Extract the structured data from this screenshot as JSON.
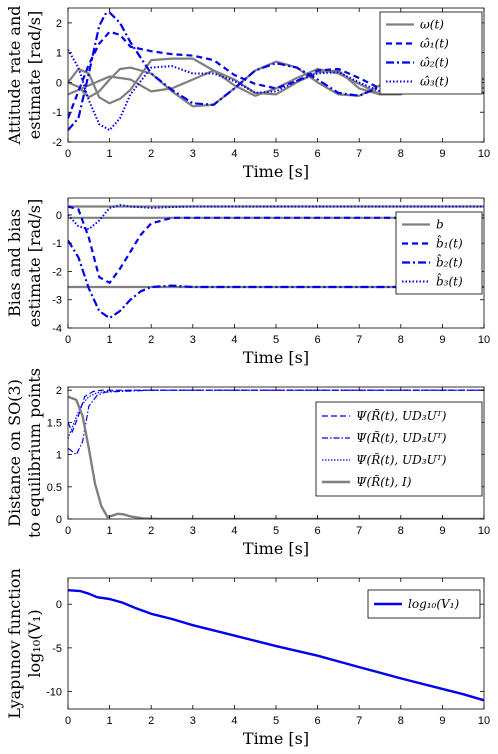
{
  "colors": {
    "gray": "#7f7f7f",
    "blue": "#0000ee",
    "axis": "#000000",
    "background": "#ffffff"
  },
  "chart_data": [
    {
      "type": "line",
      "xlabel": "Time [s]",
      "ylabel": [
        "Attitude rate and",
        "estimate [rad/s]"
      ],
      "xlim": [
        0,
        10
      ],
      "ylim": [
        -2,
        2.5
      ],
      "xticks": [
        "0",
        "1",
        "2",
        "3",
        "4",
        "5",
        "6",
        "7",
        "8",
        "9",
        "10"
      ],
      "yticks": [
        {
          "v": -2,
          "label": "-2"
        },
        {
          "v": -1,
          "label": "-1"
        },
        {
          "v": 0,
          "label": "0"
        },
        {
          "v": 1,
          "label": "1"
        },
        {
          "v": 2,
          "label": "2"
        }
      ],
      "legend_position": "top-right",
      "series": [
        {
          "name": "ω(t)",
          "color": "#7f7f7f",
          "dash": "solid",
          "width": 2.2,
          "x": [
            0,
            0.25,
            0.5,
            0.75,
            1,
            1.25,
            1.5,
            2,
            2.5,
            3,
            3.5,
            4,
            4.5,
            5,
            5.5,
            6,
            6.5,
            7,
            7.5,
            8,
            8.5,
            9,
            9.5,
            10
          ],
          "y": [
            0,
            0.45,
            0.3,
            -0.5,
            -0.7,
            -0.55,
            -0.25,
            0.75,
            0.8,
            0.8,
            0.4,
            -0.1,
            -0.45,
            -0.2,
            0.15,
            0.45,
            0.3,
            -0.05,
            -0.4,
            -0.4,
            -0.05,
            0.3,
            0.4,
            0.1
          ]
        },
        {
          "name": "ω(t)",
          "color": "#7f7f7f",
          "dash": "solid",
          "width": 2.2,
          "x": [
            0,
            0.25,
            0.5,
            0.75,
            1,
            1.25,
            1.5,
            2,
            2.5,
            3,
            3.5,
            4,
            4.5,
            5,
            5.5,
            6,
            6.5,
            7,
            7.5,
            8,
            8.5,
            9,
            9.5,
            10
          ],
          "y": [
            0,
            -0.15,
            -0.5,
            -0.3,
            0.1,
            0.45,
            0.5,
            0.3,
            -0.3,
            -0.8,
            -0.75,
            -0.2,
            0.4,
            0.7,
            0.5,
            0,
            -0.4,
            -0.45,
            -0.1,
            0.3,
            0.45,
            0.2,
            -0.2,
            -0.35
          ]
        },
        {
          "name": "ω(t)",
          "color": "#7f7f7f",
          "dash": "solid",
          "width": 2.2,
          "x": [
            0,
            0.5,
            1,
            1.5,
            2,
            2.5,
            3,
            3.5,
            4,
            4.5,
            5,
            5.5,
            6,
            6.5,
            7,
            7.5,
            8,
            8.5,
            9,
            9.5,
            10
          ],
          "y": [
            -0.4,
            -0.1,
            0.2,
            0.1,
            -0.3,
            -0.2,
            0.1,
            0.4,
            0.1,
            -0.35,
            -0.4,
            0,
            0.35,
            0.4,
            -0.2,
            -0.4,
            -0.2,
            0.2,
            0.35,
            0.1,
            -0.2
          ]
        },
        {
          "name": "ω̂₁(t)",
          "color": "#0000ee",
          "dash": "6,4",
          "width": 2.2,
          "x": [
            0,
            0.25,
            0.5,
            0.75,
            1,
            1.25,
            1.5,
            2,
            2.5,
            3,
            3.5,
            4,
            4.5,
            5,
            5.5,
            6,
            6.5,
            7,
            7.5,
            8,
            8.5,
            9,
            9.5,
            10
          ],
          "y": [
            -1.2,
            -0.3,
            0.6,
            1.3,
            1.7,
            1.6,
            1.2,
            1.05,
            0.95,
            0.9,
            0.75,
            0.25,
            -0.05,
            -0.2,
            0.05,
            0.4,
            0.45,
            0.15,
            -0.2,
            -0.35,
            -0.1,
            0.3,
            0.45,
            0.2
          ]
        },
        {
          "name": "ω̂₂(t)",
          "color": "#0000ee",
          "dash": "8,3,2,3",
          "width": 2.2,
          "x": [
            0,
            0.25,
            0.5,
            0.75,
            0.9,
            1,
            1.25,
            1.5,
            2,
            2.5,
            3,
            3.5,
            4,
            4.5,
            5,
            5.5,
            6,
            6.5,
            7,
            7.5,
            8,
            8.5,
            9,
            9.5,
            10
          ],
          "y": [
            -1.6,
            -1.2,
            0.3,
            1.9,
            2.3,
            2.35,
            2,
            1.35,
            0.3,
            -0.25,
            -0.7,
            -0.75,
            -0.2,
            0.4,
            0.65,
            0.5,
            0.1,
            -0.35,
            -0.45,
            -0.15,
            0.25,
            0.45,
            0.25,
            -0.15,
            -0.35
          ]
        },
        {
          "name": "ω̂₃(t)",
          "color": "#0000ee",
          "dash": "1.5,2",
          "width": 2,
          "x": [
            0,
            0.25,
            0.5,
            0.75,
            1,
            1.25,
            1.5,
            2,
            2.5,
            3,
            3.5,
            4,
            4.5,
            5,
            5.5,
            6,
            6.5,
            7,
            7.5,
            8,
            8.5,
            9,
            9.5,
            10
          ],
          "y": [
            1.1,
            0.5,
            -0.6,
            -1.4,
            -1.6,
            -1.2,
            -0.4,
            0.5,
            0.55,
            0.3,
            0.3,
            0.05,
            -0.35,
            -0.3,
            0.05,
            0.3,
            0.35,
            0,
            -0.3,
            -0.3,
            0.05,
            0.3,
            0.2,
            -0.1
          ]
        }
      ]
    },
    {
      "type": "line",
      "xlabel": "Time [s]",
      "ylabel": [
        "Bias and bias",
        "estimate [rad/s]"
      ],
      "xlim": [
        0,
        10
      ],
      "ylim": [
        -4,
        0.6
      ],
      "xticks": [
        "0",
        "1",
        "2",
        "3",
        "4",
        "5",
        "6",
        "7",
        "8",
        "9",
        "10"
      ],
      "yticks": [
        {
          "v": -4,
          "label": "-4"
        },
        {
          "v": -3,
          "label": "-3"
        },
        {
          "v": -2,
          "label": "-2"
        },
        {
          "v": -1,
          "label": "-1"
        },
        {
          "v": 0,
          "label": "0"
        }
      ],
      "legend_position": "top-right",
      "series": [
        {
          "name": "b",
          "color": "#7f7f7f",
          "dash": "solid",
          "width": 2.2,
          "x": [
            0,
            10
          ],
          "y": [
            0.3,
            0.3
          ]
        },
        {
          "name": "b",
          "color": "#7f7f7f",
          "dash": "solid",
          "width": 2.2,
          "x": [
            0,
            10
          ],
          "y": [
            -0.1,
            -0.1
          ]
        },
        {
          "name": "b",
          "color": "#7f7f7f",
          "dash": "solid",
          "width": 2.2,
          "x": [
            0,
            10
          ],
          "y": [
            -2.55,
            -2.55
          ]
        },
        {
          "name": "b̂₁(t)",
          "color": "#0000ee",
          "dash": "6,4",
          "width": 2.2,
          "x": [
            0,
            0.25,
            0.5,
            0.75,
            1,
            1.25,
            1.5,
            1.75,
            2,
            2.5,
            3,
            4,
            5,
            6,
            7,
            8,
            9,
            10
          ],
          "y": [
            0.3,
            0.2,
            -0.8,
            -2.2,
            -2.4,
            -1.9,
            -1.3,
            -0.7,
            -0.3,
            -0.1,
            -0.1,
            -0.1,
            -0.1,
            -0.1,
            -0.1,
            -0.1,
            -0.1,
            -0.1
          ]
        },
        {
          "name": "b̂₂(t)",
          "color": "#0000ee",
          "dash": "8,3,2,3",
          "width": 2.2,
          "x": [
            0,
            0.25,
            0.5,
            0.75,
            1,
            1.25,
            1.5,
            1.75,
            2,
            2.5,
            3,
            4,
            5,
            6,
            7,
            8,
            9,
            10
          ],
          "y": [
            -0.9,
            -1.5,
            -2.6,
            -3.4,
            -3.65,
            -3.4,
            -3.0,
            -2.7,
            -2.55,
            -2.5,
            -2.55,
            -2.55,
            -2.55,
            -2.55,
            -2.55,
            -2.55,
            -2.55,
            -2.55
          ]
        },
        {
          "name": "b̂₃(t)",
          "color": "#0000ee",
          "dash": "1.5,2",
          "width": 2,
          "x": [
            0,
            0.25,
            0.5,
            0.75,
            1,
            1.25,
            1.5,
            2,
            2.5,
            3,
            4,
            5,
            6,
            7,
            8,
            9,
            10
          ],
          "y": [
            0,
            -0.4,
            -0.5,
            -0.2,
            0.25,
            0.35,
            0.3,
            0.25,
            0.28,
            0.3,
            0.3,
            0.3,
            0.3,
            0.3,
            0.3,
            0.3,
            0.3
          ]
        }
      ]
    },
    {
      "type": "line",
      "xlabel": "Time [s]",
      "ylabel": [
        "Distance on SO(3)",
        "to equilibrium points"
      ],
      "xlim": [
        0,
        10
      ],
      "ylim": [
        0,
        2.05
      ],
      "xticks": [
        "0",
        "1",
        "2",
        "3",
        "4",
        "5",
        "6",
        "7",
        "8",
        "9",
        "10"
      ],
      "yticks": [
        {
          "v": 0,
          "label": "0"
        },
        {
          "v": 0.5,
          "label": "0.5"
        },
        {
          "v": 1,
          "label": "1"
        },
        {
          "v": 1.5,
          "label": "1.5"
        },
        {
          "v": 2,
          "label": "2"
        }
      ],
      "legend_position": "center-right",
      "series": [
        {
          "name": "Ψ(R̃(t), UD₃Uᵀ)",
          "color": "#0000ee",
          "dash": "6,3",
          "width": 1.2,
          "x": [
            0,
            0.1,
            0.25,
            0.4,
            0.6,
            0.8,
            1,
            1.5,
            2,
            3,
            10
          ],
          "y": [
            1.5,
            1.35,
            1.6,
            1.9,
            1.98,
            2,
            2,
            2,
            2,
            2,
            2
          ]
        },
        {
          "name": "Ψ(R̃(t), UD₃Uᵀ)",
          "color": "#0000ee",
          "dash": "6,2,1.5,2",
          "width": 1.2,
          "x": [
            0,
            0.2,
            0.35,
            0.5,
            0.7,
            0.9,
            1.2,
            1.6,
            2,
            3,
            10
          ],
          "y": [
            1.1,
            1.0,
            1.2,
            1.75,
            1.92,
            1.97,
            1.98,
            1.99,
            2,
            2,
            2
          ]
        },
        {
          "name": "Ψ(R̃(t), UD₃Uᵀ)",
          "color": "#0000ee",
          "dash": "1.5,1.5",
          "width": 1.2,
          "x": [
            0,
            0.15,
            0.3,
            0.5,
            0.7,
            0.9,
            1.2,
            1.6,
            2,
            3,
            10
          ],
          "y": [
            1.25,
            1.5,
            1.75,
            1.9,
            1.96,
            1.98,
            1.99,
            2,
            2,
            2,
            2
          ]
        },
        {
          "name": "Ψ(R̃(t), I)",
          "color": "#7f7f7f",
          "dash": "solid",
          "width": 2.4,
          "x": [
            0,
            0.2,
            0.35,
            0.5,
            0.65,
            0.8,
            0.95,
            1.05,
            1.2,
            1.35,
            1.5,
            1.8,
            2.2,
            3,
            10
          ],
          "y": [
            1.9,
            1.85,
            1.6,
            1.1,
            0.55,
            0.2,
            0.03,
            0.05,
            0.08,
            0.07,
            0.04,
            0.01,
            0,
            0,
            0
          ]
        }
      ]
    },
    {
      "type": "line",
      "xlabel": "Time [s]",
      "ylabel": [
        "Lyapunov function",
        "log₁₀(V₁)"
      ],
      "xlim": [
        0,
        10
      ],
      "ylim": [
        -12,
        3
      ],
      "xticks": [
        "0",
        "1",
        "2",
        "3",
        "4",
        "5",
        "6",
        "7",
        "8",
        "9",
        "10"
      ],
      "yticks": [
        {
          "v": -10,
          "label": "-10"
        },
        {
          "v": -5,
          "label": "-5"
        },
        {
          "v": 0,
          "label": "0"
        }
      ],
      "legend_position": "top-right",
      "series": [
        {
          "name": "log₁₀(V₁)",
          "color": "#0000ee",
          "dash": "solid",
          "width": 2.4,
          "x": [
            0,
            0.3,
            0.5,
            0.7,
            1,
            1.3,
            1.6,
            2,
            2.5,
            3,
            4,
            5,
            6,
            7,
            8,
            9,
            9.5,
            10
          ],
          "y": [
            1.6,
            1.5,
            1.2,
            0.8,
            0.6,
            0.2,
            -0.4,
            -1.1,
            -1.7,
            -2.4,
            -3.6,
            -4.8,
            -5.9,
            -7.2,
            -8.5,
            -9.7,
            -10.3,
            -11
          ]
        }
      ]
    }
  ]
}
